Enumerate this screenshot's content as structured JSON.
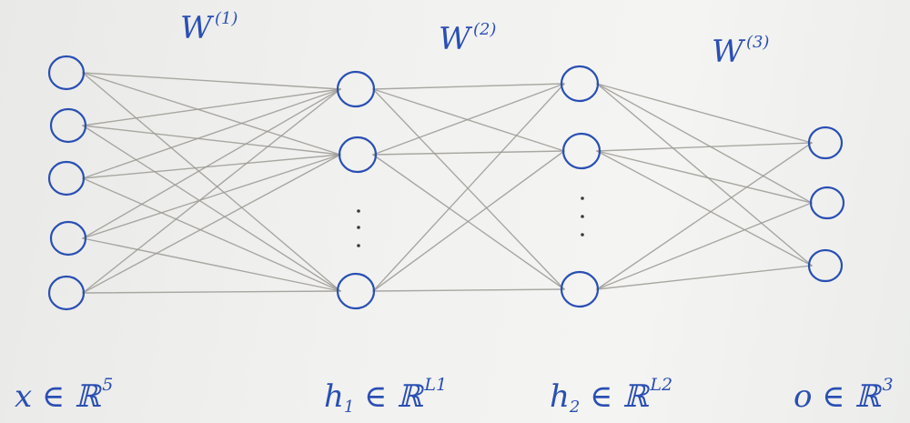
{
  "layers": [
    {
      "id": "input",
      "visible_nodes": 5,
      "ellipsis": false
    },
    {
      "id": "hidden1",
      "visible_nodes": 3,
      "ellipsis": true
    },
    {
      "id": "hidden2",
      "visible_nodes": 3,
      "ellipsis": true
    },
    {
      "id": "output",
      "visible_nodes": 3,
      "ellipsis": false
    }
  ],
  "weights": [
    {
      "symbol": "W",
      "index": "(1)"
    },
    {
      "symbol": "W",
      "index": "(2)"
    },
    {
      "symbol": "W",
      "index": "(3)"
    }
  ],
  "vectors": [
    {
      "var": "x",
      "sub": "",
      "in": "∈",
      "set": "ℝ",
      "dim": "5"
    },
    {
      "var": "h",
      "sub": "1",
      "in": "∈",
      "set": "ℝ",
      "dim": "L1"
    },
    {
      "var": "h",
      "sub": "2",
      "in": "∈",
      "set": "ℝ",
      "dim": "L2"
    },
    {
      "var": "o",
      "sub": "",
      "in": "∈",
      "set": "ℝ",
      "dim": "3"
    }
  ],
  "colors": {
    "ink": "#2a4fb3",
    "edge": "#9c9a94",
    "paper": "#efefed"
  }
}
